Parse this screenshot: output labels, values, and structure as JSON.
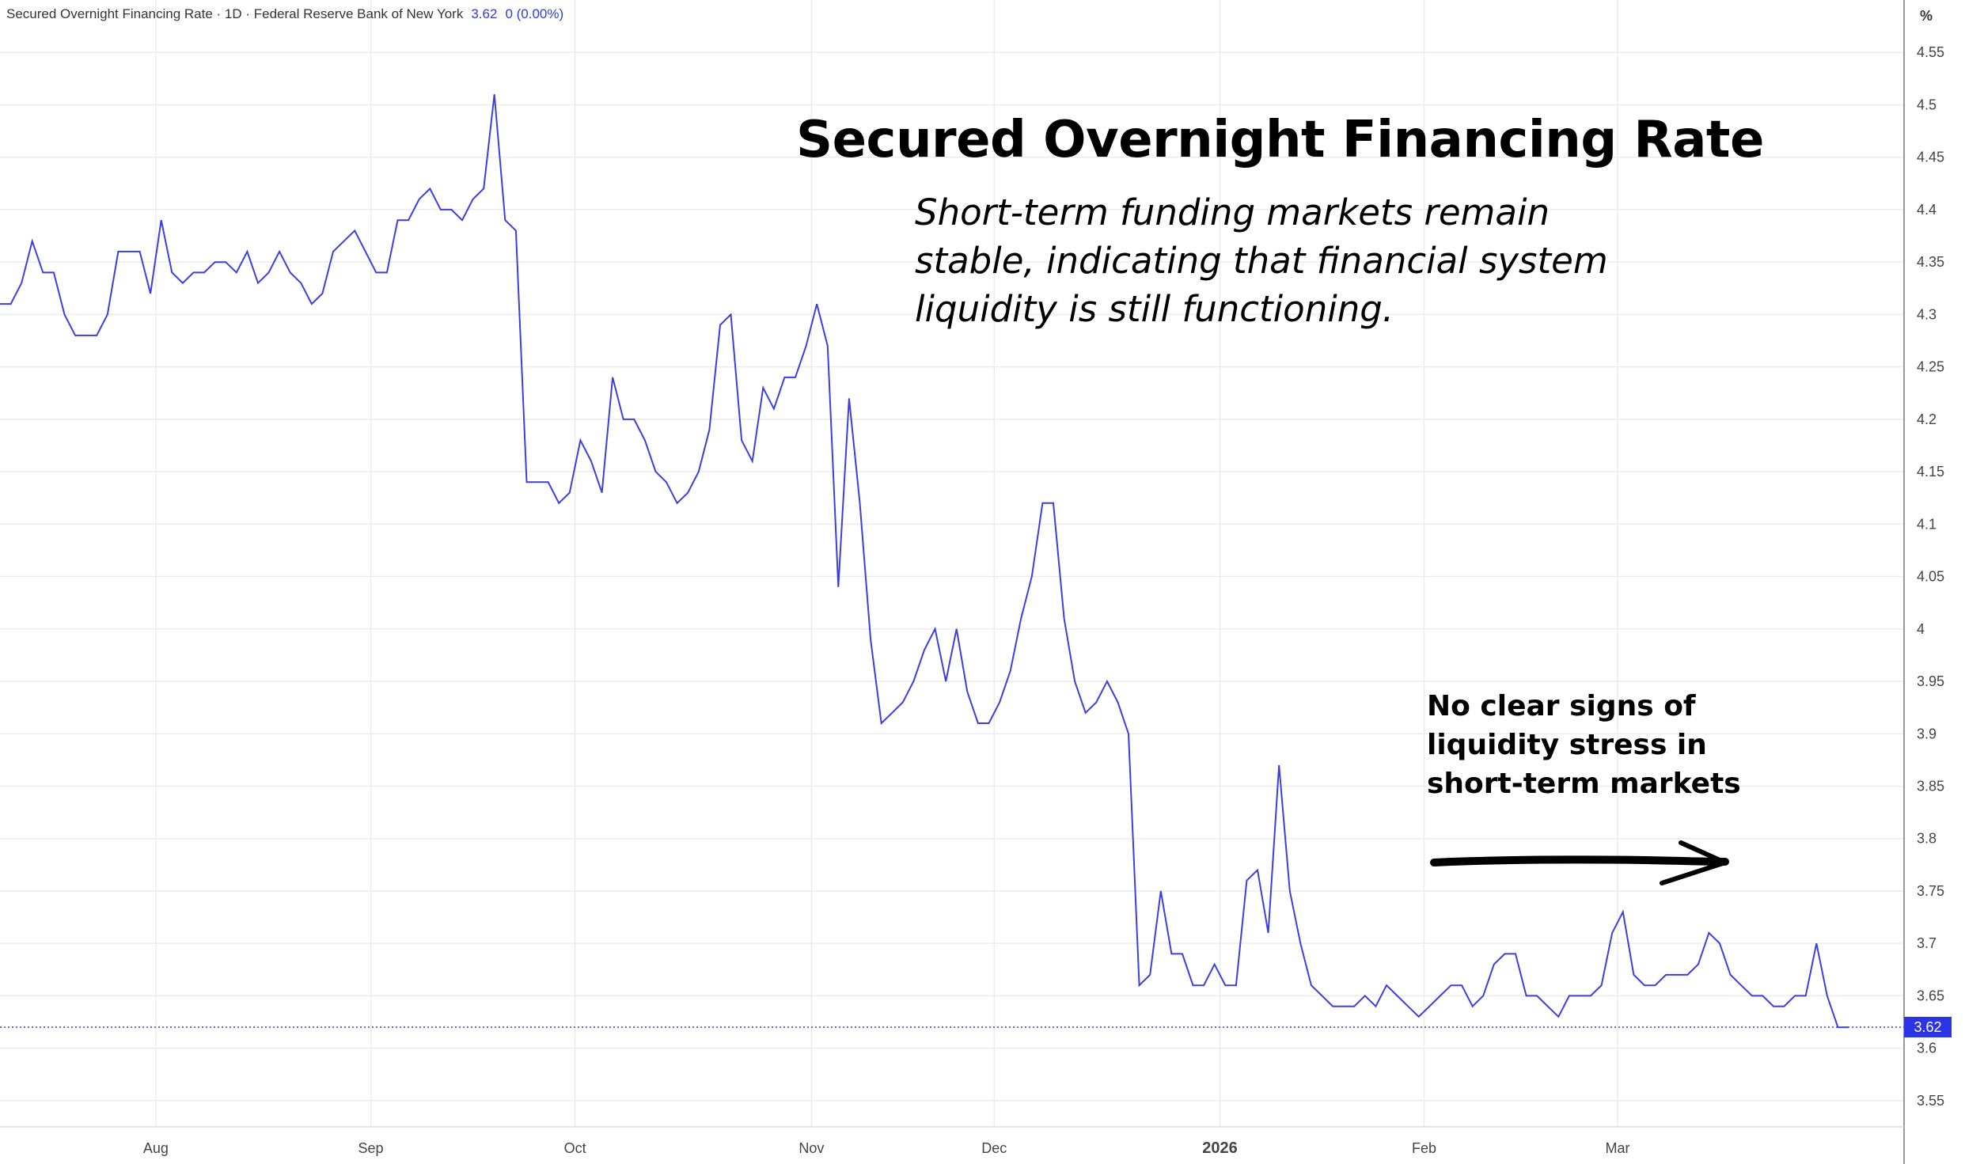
{
  "header": {
    "title": "Secured Overnight Financing Rate · 1D · Federal Reserve Bank of New York",
    "last_value": "3.62",
    "change": "0 (0.00%)"
  },
  "annotation": {
    "title": "Secured Overnight Financing Rate",
    "subtitle": "Short-term funding markets remain stable, indicating that financial system liquidity is still functioning.",
    "note": "No clear signs of liquidity stress in short-term markets"
  },
  "axis": {
    "unit_label": "%",
    "last_badge": "3.62"
  },
  "colors": {
    "line": "#3b3fe0",
    "badge": "#2b35e6",
    "grid": "#ececec"
  },
  "chart_data": {
    "type": "line",
    "title": "Secured Overnight Financing Rate",
    "ylim": [
      3.525,
      4.6
    ],
    "y_ticks": [
      "3.55",
      "3.6",
      "3.65",
      "3.7",
      "3.75",
      "3.8",
      "3.85",
      "3.9",
      "3.95",
      "4",
      "4.05",
      "4.1",
      "4.15",
      "4.2",
      "4.25",
      "4.3",
      "4.35",
      "4.4",
      "4.45",
      "4.5",
      "4.55"
    ],
    "x_ticks": [
      {
        "label": "Aug",
        "index": 14.5,
        "bold": false
      },
      {
        "label": "Sep",
        "index": 34.5,
        "bold": false
      },
      {
        "label": "Oct",
        "index": 53.5,
        "bold": false
      },
      {
        "label": "Nov",
        "index": 75.5,
        "bold": false
      },
      {
        "label": "Dec",
        "index": 92.5,
        "bold": false
      },
      {
        "label": "2026",
        "index": 113.5,
        "bold": true
      },
      {
        "label": "Feb",
        "index": 132.5,
        "bold": false
      },
      {
        "label": "Mar",
        "index": 150.5,
        "bold": false
      }
    ],
    "grid": true,
    "last_value": 3.62,
    "series": [
      {
        "values": [
          4.31,
          4.31,
          4.33,
          4.37,
          4.34,
          4.34,
          4.3,
          4.28,
          4.28,
          4.28,
          4.3,
          4.36,
          4.36,
          4.36,
          4.32,
          4.39,
          4.34,
          4.33,
          4.34,
          4.34,
          4.35,
          4.35,
          4.34,
          4.36,
          4.33,
          4.34,
          4.36,
          4.34,
          4.33,
          4.31,
          4.32,
          4.36,
          4.37,
          4.38,
          4.36,
          4.34,
          4.34,
          4.39,
          4.39,
          4.41,
          4.42,
          4.4,
          4.4,
          4.39,
          4.41,
          4.42,
          4.51,
          4.39,
          4.38,
          4.14,
          4.14,
          4.14,
          4.12,
          4.13,
          4.18,
          4.16,
          4.13,
          4.24,
          4.2,
          4.2,
          4.18,
          4.15,
          4.14,
          4.12,
          4.13,
          4.15,
          4.19,
          4.29,
          4.3,
          4.18,
          4.16,
          4.23,
          4.21,
          4.24,
          4.24,
          4.27,
          4.31,
          4.27,
          4.04,
          4.22,
          4.12,
          3.99,
          3.91,
          3.92,
          3.93,
          3.95,
          3.98,
          4.0,
          3.95,
          4.0,
          3.94,
          3.91,
          3.91,
          3.93,
          3.96,
          4.01,
          4.05,
          4.12,
          4.12,
          4.01,
          3.95,
          3.92,
          3.93,
          3.95,
          3.93,
          3.9,
          3.66,
          3.67,
          3.75,
          3.69,
          3.69,
          3.66,
          3.66,
          3.68,
          3.66,
          3.66,
          3.76,
          3.77,
          3.71,
          3.87,
          3.75,
          3.7,
          3.66,
          3.65,
          3.64,
          3.64,
          3.64,
          3.65,
          3.64,
          3.66,
          3.65,
          3.64,
          3.63,
          3.64,
          3.65,
          3.66,
          3.66,
          3.64,
          3.65,
          3.68,
          3.69,
          3.69,
          3.65,
          3.65,
          3.64,
          3.63,
          3.65,
          3.65,
          3.65,
          3.66,
          3.71,
          3.73,
          3.67,
          3.66,
          3.66,
          3.67,
          3.67,
          3.67,
          3.68,
          3.71,
          3.7,
          3.67,
          3.66,
          3.65,
          3.65,
          3.64,
          3.64,
          3.65,
          3.65,
          3.7,
          3.65,
          3.62,
          3.62
        ]
      }
    ]
  }
}
